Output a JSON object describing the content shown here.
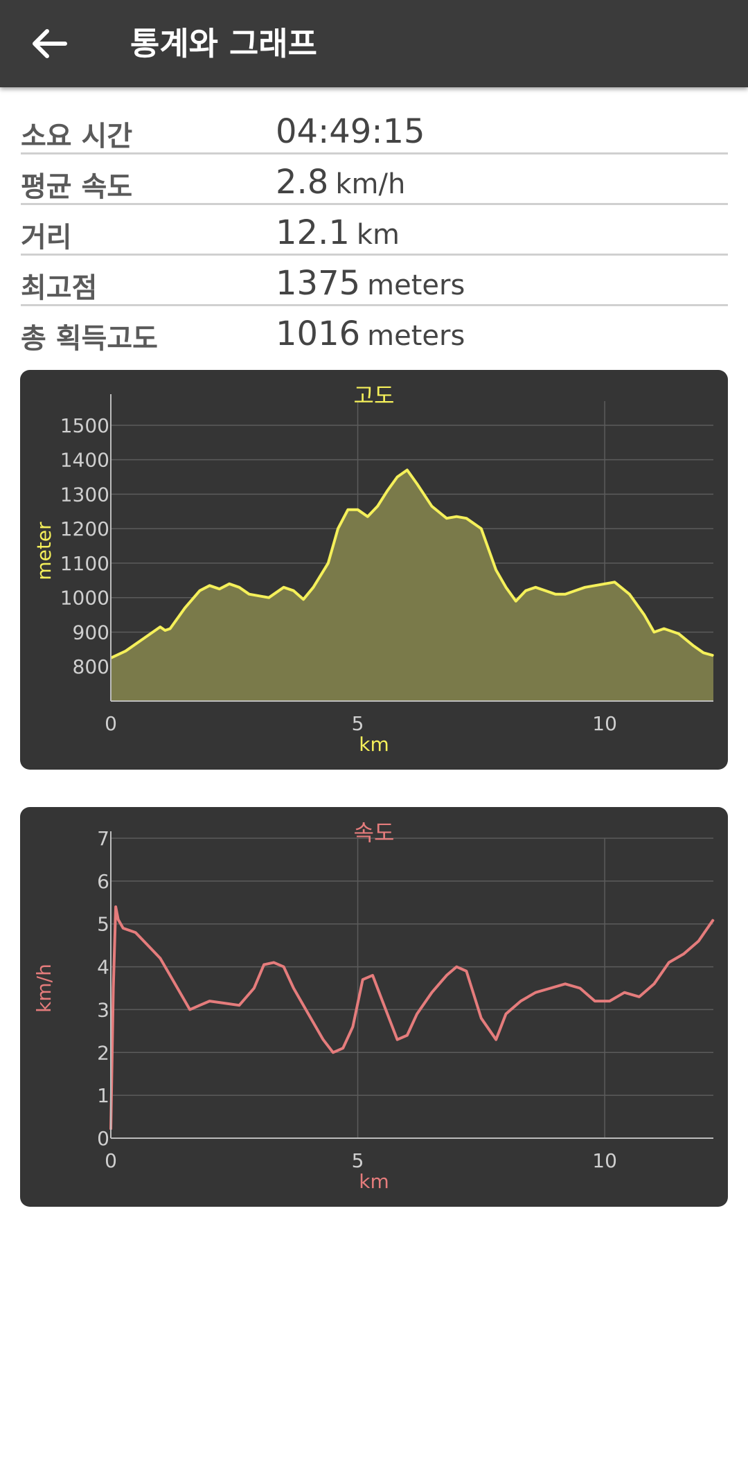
{
  "header": {
    "title": "통계와 그래프",
    "back_icon": "arrow-left-icon"
  },
  "stats": [
    {
      "label": "소요 시간",
      "value": "04:49:15",
      "unit": ""
    },
    {
      "label": "평균 속도",
      "value": "2.8",
      "unit": "km/h"
    },
    {
      "label": "거리",
      "value": "12.1",
      "unit": "km"
    },
    {
      "label": "최고점",
      "value": "1375",
      "unit": "meters"
    },
    {
      "label": "총 획득고도",
      "value": "1016",
      "unit": "meters"
    }
  ],
  "chart_data": [
    {
      "type": "area",
      "title": "고도",
      "xlabel": "km",
      "ylabel": "meter",
      "color": "#f5f05a",
      "fill": "#7a7a4a",
      "xlim": [
        0,
        12.2
      ],
      "ylim": [
        700,
        1570
      ],
      "x_ticks": [
        0,
        5,
        10
      ],
      "y_ticks": [
        800,
        900,
        1000,
        1100,
        1200,
        1300,
        1400,
        1500
      ],
      "grid": true,
      "x": [
        0,
        0.3,
        0.6,
        1.0,
        1.1,
        1.2,
        1.5,
        1.8,
        2.0,
        2.2,
        2.4,
        2.6,
        2.8,
        3.0,
        3.2,
        3.5,
        3.7,
        3.9,
        4.1,
        4.4,
        4.6,
        4.8,
        5.0,
        5.2,
        5.4,
        5.6,
        5.8,
        6.0,
        6.2,
        6.5,
        6.8,
        7.0,
        7.2,
        7.5,
        7.8,
        8.0,
        8.2,
        8.4,
        8.6,
        8.8,
        9.0,
        9.2,
        9.4,
        9.6,
        9.8,
        10.0,
        10.2,
        10.5,
        10.8,
        11.0,
        11.2,
        11.5,
        11.8,
        12.0,
        12.2
      ],
      "y": [
        825,
        845,
        875,
        915,
        905,
        910,
        970,
        1020,
        1035,
        1025,
        1040,
        1030,
        1010,
        1005,
        1000,
        1030,
        1020,
        995,
        1030,
        1100,
        1200,
        1255,
        1255,
        1235,
        1265,
        1310,
        1350,
        1370,
        1330,
        1265,
        1230,
        1235,
        1230,
        1200,
        1080,
        1030,
        990,
        1020,
        1030,
        1020,
        1010,
        1010,
        1020,
        1030,
        1035,
        1040,
        1045,
        1010,
        950,
        900,
        910,
        895,
        860,
        840,
        832
      ]
    },
    {
      "type": "line",
      "title": "속도",
      "xlabel": "km",
      "ylabel": "km/h",
      "color": "#e57c7c",
      "xlim": [
        0,
        12.2
      ],
      "ylim": [
        0,
        7
      ],
      "x_ticks": [
        0,
        5,
        10
      ],
      "y_ticks": [
        0,
        1,
        2,
        3,
        4,
        5,
        6,
        7
      ],
      "grid": true,
      "x": [
        0,
        0.05,
        0.1,
        0.15,
        0.25,
        0.5,
        0.75,
        1.0,
        1.3,
        1.6,
        1.8,
        2.0,
        2.3,
        2.6,
        2.9,
        3.1,
        3.3,
        3.5,
        3.7,
        4.0,
        4.3,
        4.5,
        4.7,
        4.9,
        5.1,
        5.3,
        5.5,
        5.8,
        6.0,
        6.2,
        6.5,
        6.8,
        7.0,
        7.2,
        7.5,
        7.8,
        8.0,
        8.3,
        8.6,
        8.9,
        9.2,
        9.5,
        9.8,
        10.1,
        10.4,
        10.7,
        11.0,
        11.3,
        11.6,
        11.9,
        12.2
      ],
      "y": [
        0.2,
        3.5,
        5.4,
        5.1,
        4.9,
        4.8,
        4.5,
        4.2,
        3.6,
        3.0,
        3.1,
        3.2,
        3.15,
        3.1,
        3.5,
        4.05,
        4.1,
        4.0,
        3.5,
        2.9,
        2.3,
        2.0,
        2.1,
        2.6,
        3.7,
        3.8,
        3.2,
        2.3,
        2.4,
        2.9,
        3.4,
        3.8,
        4.0,
        3.9,
        2.8,
        2.3,
        2.9,
        3.2,
        3.4,
        3.5,
        3.6,
        3.5,
        3.2,
        3.2,
        3.4,
        3.3,
        3.6,
        4.1,
        4.3,
        4.6,
        5.1
      ]
    }
  ]
}
